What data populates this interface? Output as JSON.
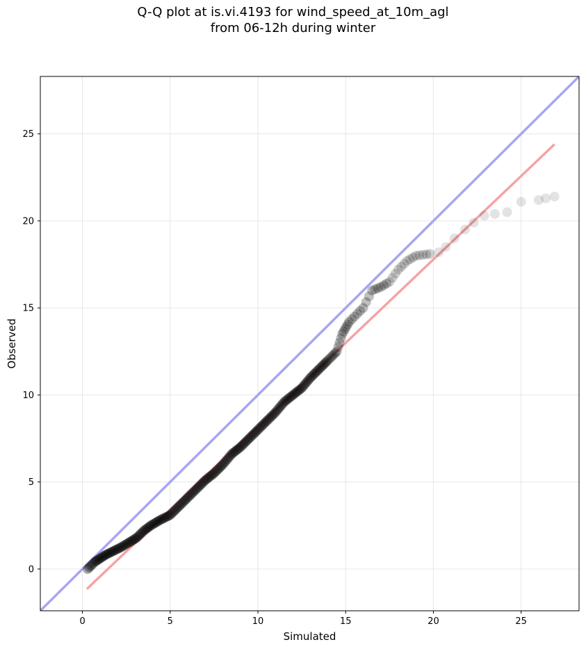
{
  "chart_data": {
    "type": "scatter",
    "title": "Q-Q plot at is.vi.4193 for wind_speed_at_10m_agl",
    "subtitle": "from 06-12h during winter",
    "xlabel": "Simulated",
    "ylabel": "Observed",
    "xlim": [
      -2.4,
      28.3
    ],
    "ylim": [
      -2.4,
      28.3
    ],
    "grid": true,
    "x_ticks": [
      0,
      5,
      10,
      15,
      20,
      25
    ],
    "y_ticks": [
      0,
      5,
      10,
      15,
      20,
      25
    ],
    "x_tick_labels": [
      "0",
      "5",
      "10",
      "15",
      "20",
      "25"
    ],
    "y_tick_labels": [
      "0",
      "5",
      "10",
      "15",
      "20",
      "25"
    ],
    "reference_line": {
      "slope": 1,
      "intercept": 0,
      "color": "#a6a6f2"
    },
    "fit_line": {
      "x": [
        0.25,
        26.9
      ],
      "y": [
        -1.15,
        24.4
      ],
      "color": "#f5a3a3"
    },
    "point_color": "#000000",
    "quantiles": [
      [
        0.3,
        0.0
      ],
      [
        0.5,
        0.2
      ],
      [
        0.7,
        0.4
      ],
      [
        1.0,
        0.6
      ],
      [
        1.3,
        0.8
      ],
      [
        1.7,
        1.0
      ],
      [
        2.2,
        1.25
      ],
      [
        2.7,
        1.55
      ],
      [
        3.1,
        1.8
      ],
      [
        3.5,
        2.2
      ],
      [
        3.9,
        2.5
      ],
      [
        4.4,
        2.8
      ],
      [
        5.0,
        3.1
      ],
      [
        5.5,
        3.6
      ],
      [
        6.0,
        4.1
      ],
      [
        6.5,
        4.6
      ],
      [
        7.0,
        5.1
      ],
      [
        7.5,
        5.5
      ],
      [
        8.0,
        6.0
      ],
      [
        8.5,
        6.6
      ],
      [
        9.0,
        7.0
      ],
      [
        9.5,
        7.5
      ],
      [
        10.0,
        8.0
      ],
      [
        10.5,
        8.5
      ],
      [
        11.0,
        9.0
      ],
      [
        11.5,
        9.6
      ],
      [
        12.0,
        10.0
      ],
      [
        12.5,
        10.4
      ],
      [
        13.0,
        11.0
      ],
      [
        13.5,
        11.5
      ],
      [
        14.0,
        12.0
      ],
      [
        14.5,
        12.5
      ],
      [
        14.8,
        13.5
      ],
      [
        15.2,
        14.2
      ],
      [
        15.5,
        14.5
      ],
      [
        16.0,
        15.0
      ],
      [
        16.5,
        16.0
      ],
      [
        17.0,
        16.2
      ],
      [
        17.5,
        16.5
      ],
      [
        18.0,
        17.2
      ],
      [
        18.5,
        17.7
      ],
      [
        19.0,
        18.0
      ],
      [
        19.8,
        18.1
      ],
      [
        20.3,
        18.2
      ],
      [
        20.7,
        18.5
      ],
      [
        21.2,
        19.0
      ],
      [
        21.8,
        19.5
      ],
      [
        22.3,
        19.9
      ],
      [
        22.9,
        20.3
      ],
      [
        23.5,
        20.4
      ],
      [
        24.2,
        20.5
      ],
      [
        25.0,
        21.1
      ],
      [
        26.0,
        21.2
      ],
      [
        26.4,
        21.3
      ],
      [
        26.9,
        21.4
      ]
    ]
  }
}
